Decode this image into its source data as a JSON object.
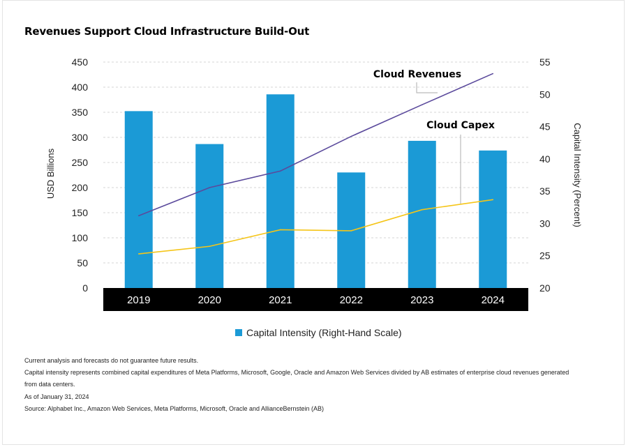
{
  "chart_data": {
    "type": "bar",
    "title": "Revenues Support Cloud Infrastructure Build-Out",
    "categories": [
      "2019",
      "2020",
      "2021",
      "2022",
      "2023",
      "2024"
    ],
    "y_left": {
      "label": "USD Billions",
      "min": 0,
      "max": 450,
      "ticks": [
        0,
        50,
        100,
        150,
        200,
        250,
        300,
        350,
        400,
        450
      ]
    },
    "y_right": {
      "label": "Capital Intensity (Percent)",
      "min": 20,
      "max": 55,
      "ticks": [
        20,
        25,
        30,
        35,
        40,
        45,
        50,
        55
      ]
    },
    "grid": true,
    "series": [
      {
        "name": "Capital Intensity (Right-Hand Scale)",
        "type": "bar",
        "axis": "right",
        "color": "#1b9ad6",
        "values": [
          47.4,
          42.3,
          50.0,
          37.9,
          42.8,
          41.3
        ]
      },
      {
        "name": "Cloud Revenues",
        "type": "line",
        "axis": "left",
        "color": "#5b4a9c",
        "values": [
          144,
          200,
          233,
          302,
          365,
          427
        ]
      },
      {
        "name": "Cloud Capex",
        "type": "line",
        "axis": "left",
        "color": "#f5c518",
        "values": [
          68,
          83,
          116,
          114,
          156,
          176
        ]
      }
    ],
    "annotations": [
      "Cloud Revenues",
      "Cloud Capex"
    ],
    "legend": {
      "position": "bottom",
      "label": "Capital Intensity (Right-Hand Scale)"
    }
  },
  "notes": [
    "Current analysis and forecasts do not guarantee future results.",
    "Capital intensity represents combined capital expenditures of Meta Platforms, Microsoft, Google, Oracle and Amazon Web Services divided by AB estimates of enterprise cloud revenues generated",
    "from data centers.",
    "As of January 31, 2024",
    "Source: Alphabet Inc., Amazon Web Services, Meta Platforms, Microsoft, Oracle and AllianceBernstein (AB)"
  ]
}
